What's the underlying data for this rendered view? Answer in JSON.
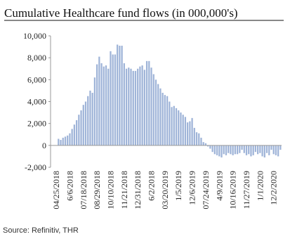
{
  "chart_data": {
    "type": "bar",
    "title": "Cumulative Healthcare fund flows (in 000,000's)",
    "source": "Source: Refinitiv, THR",
    "color": "#9fb4d8",
    "categories": [
      null,
      null,
      "04/25/2018",
      null,
      null,
      null,
      null,
      null,
      "6/6/2018",
      null,
      null,
      null,
      null,
      null,
      "07/18/2018",
      null,
      null,
      null,
      null,
      null,
      "08/29/2018",
      null,
      null,
      null,
      null,
      null,
      "10/10/2018",
      null,
      null,
      null,
      null,
      null,
      "11/21/2018",
      null,
      null,
      null,
      null,
      null,
      "12/31/2018",
      null,
      null,
      null,
      null,
      null,
      "6/2/2018",
      null,
      null,
      null,
      null,
      null,
      "03/20/2019",
      null,
      null,
      null,
      null,
      null,
      "1/5/2019",
      null,
      null,
      null,
      null,
      null,
      "12/6/2019",
      null,
      null,
      null,
      null,
      null,
      "07/24/2019",
      null,
      null,
      null,
      null,
      null,
      "4/9/2019",
      null,
      null,
      null,
      null,
      null,
      "10/16/2019",
      null,
      null,
      null,
      null,
      null,
      "11/27/2019",
      null,
      null,
      null,
      null,
      null,
      "1/1/2020",
      null,
      null,
      null,
      null,
      null,
      "12/2/2020",
      null,
      null,
      null
    ],
    "values": [
      0,
      0,
      0,
      600,
      500,
      700,
      800,
      900,
      1100,
      1500,
      1900,
      2300,
      2800,
      3200,
      3700,
      4000,
      4500,
      5000,
      4800,
      6200,
      7400,
      8100,
      7500,
      7200,
      7300,
      7000,
      8600,
      8300,
      8300,
      9200,
      9100,
      9100,
      7500,
      7000,
      7100,
      7000,
      6800,
      6800,
      7000,
      7200,
      7300,
      6900,
      7700,
      7700,
      7100,
      6500,
      6000,
      5600,
      5200,
      4800,
      4600,
      4500,
      4000,
      3500,
      3600,
      3400,
      3200,
      3000,
      2800,
      2600,
      2100,
      2200,
      2500,
      1600,
      1200,
      1100,
      700,
      300,
      200,
      -100,
      -300,
      -600,
      -800,
      -900,
      -1000,
      -1100,
      -800,
      -900,
      -700,
      -800,
      -900,
      -800,
      -800,
      -700,
      -400,
      -700,
      -900,
      -800,
      -1000,
      -900,
      -600,
      -800,
      -700,
      -1000,
      -1100,
      -700,
      -900,
      -400,
      -800,
      -900,
      -1000,
      -400
    ],
    "ylim": [
      -2000,
      10000
    ],
    "yticks": [
      {
        "value": -2000,
        "label": "-2,000"
      },
      0,
      {
        "value": 2000,
        "label": "2,000"
      },
      {
        "value": 4000,
        "label": "4,000"
      },
      {
        "value": 6000,
        "label": "6,000"
      },
      {
        "value": 8000,
        "label": "8,000"
      },
      {
        "value": 10000,
        "label": "10,000"
      }
    ],
    "grid": false
  }
}
